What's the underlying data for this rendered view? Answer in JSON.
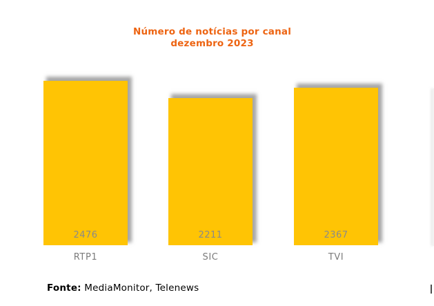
{
  "title": {
    "line1": "Número de notícias por canal",
    "line2": "dezembro 2023",
    "color": "#ED6412"
  },
  "source": {
    "label": "Fonte:",
    "text": " MediaMonitor, Telenews"
  },
  "chart_data": {
    "type": "bar",
    "title": "Número de notícias por canal dezembro 2023",
    "categories": [
      "RTP1",
      "SIC",
      "TVI"
    ],
    "values": [
      2476,
      2211,
      2367
    ],
    "xlabel": "",
    "ylabel": "",
    "ylim": [
      0,
      2580
    ],
    "grid": false,
    "legend_position": "none",
    "axes_visible": false,
    "bar_color": "#FFC404",
    "bar_shadow_color": "#888888",
    "value_label_color": "#8a8a8a",
    "category_label_color": "#7b7b7b"
  }
}
